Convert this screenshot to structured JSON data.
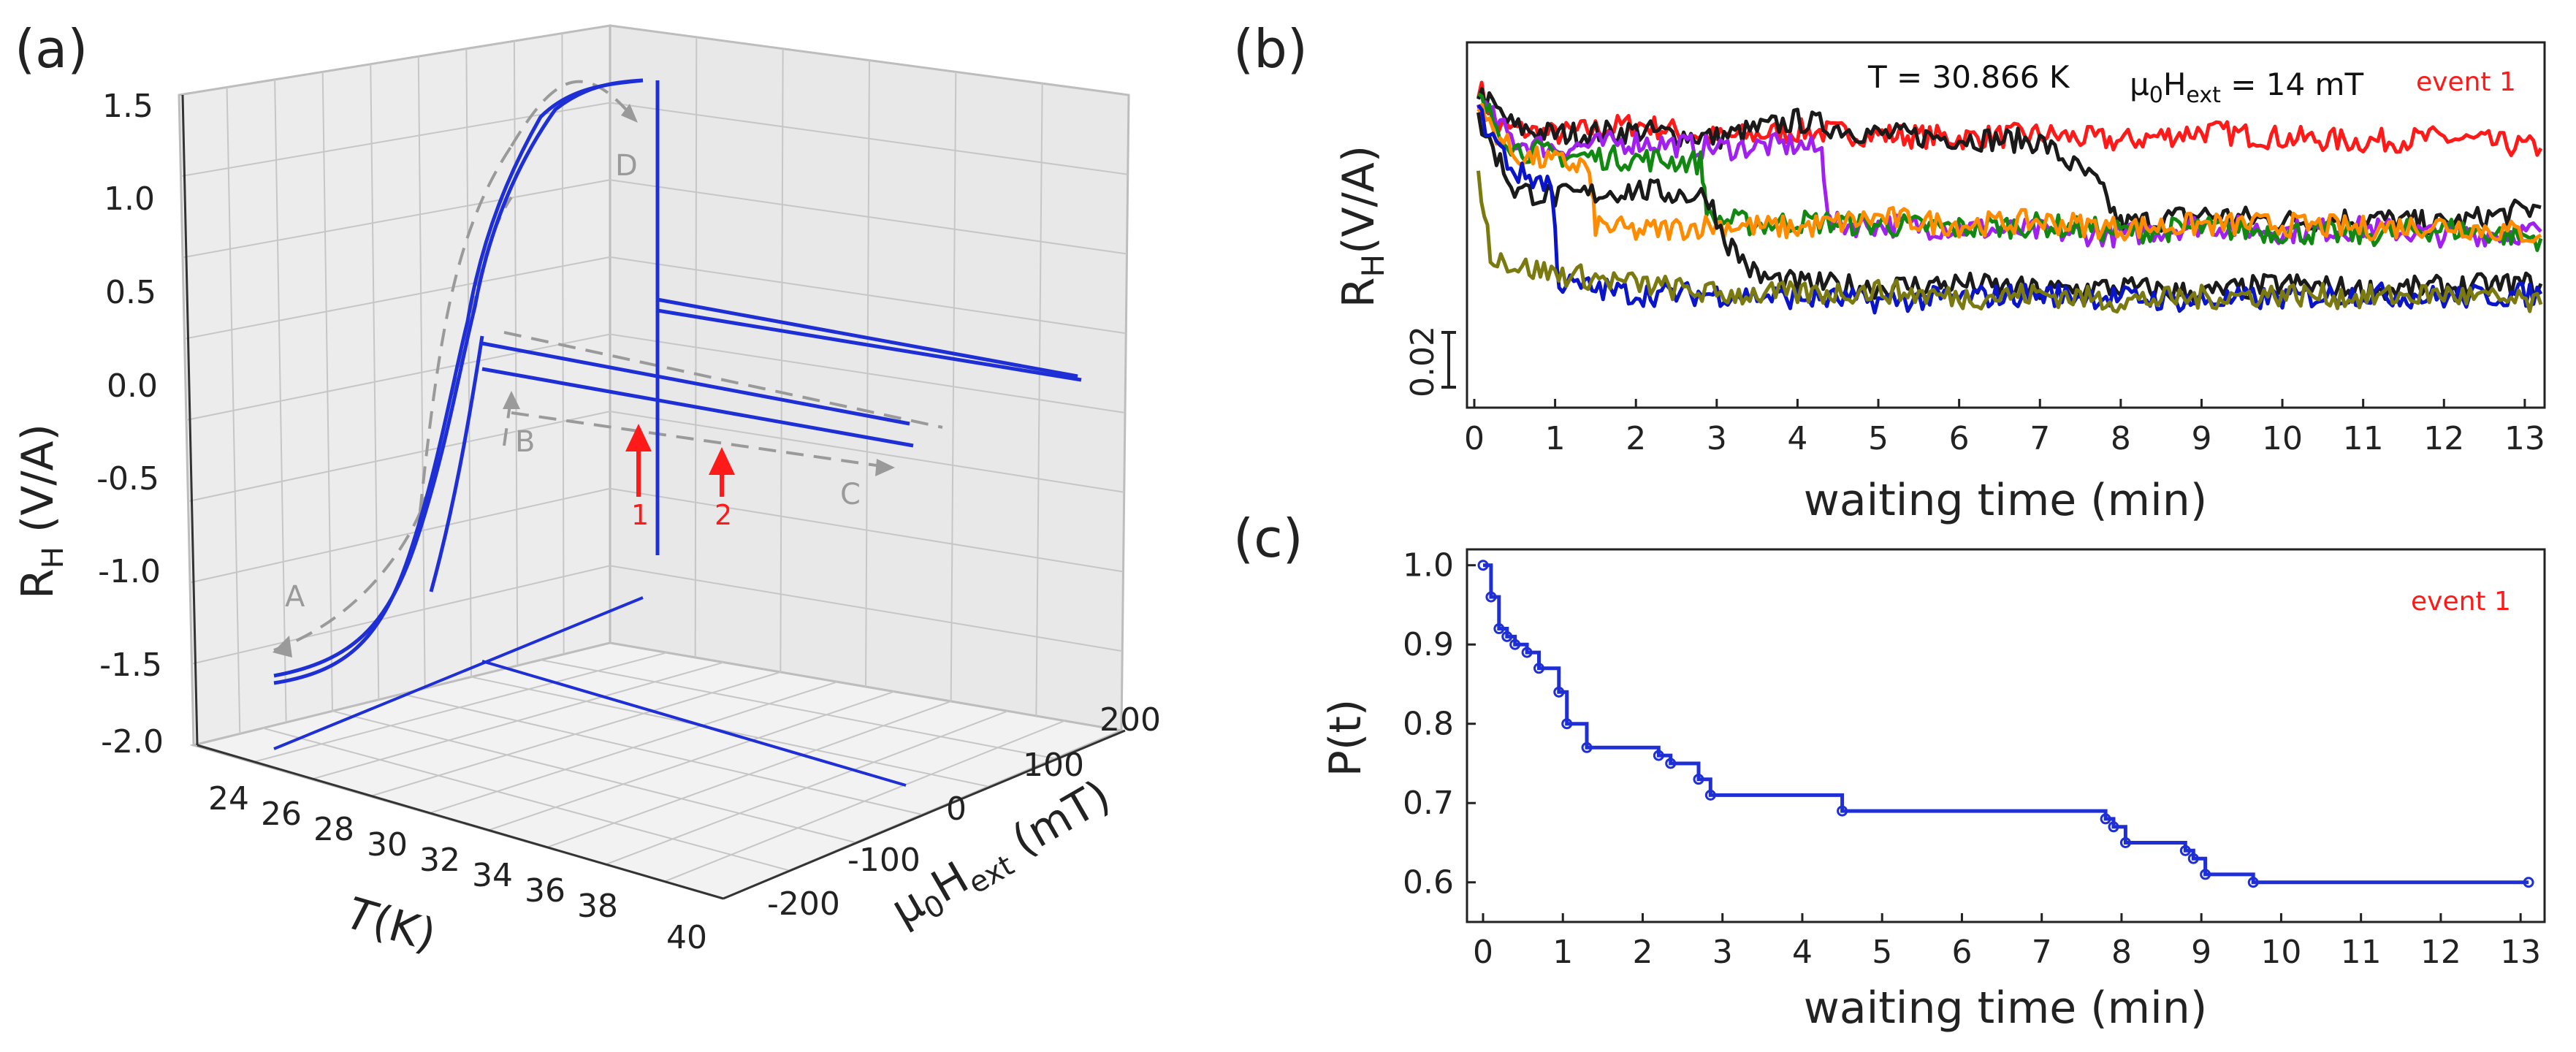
{
  "colors": {
    "blue": "#1f2fd6",
    "red": "#ff1a1a",
    "gray": "#8c8c8c",
    "black": "#1a1a1a",
    "orange": "#ff8c00",
    "green": "#118811",
    "purple": "#a020f0",
    "olive": "#7a7a10",
    "darkblue": "#0a14c8"
  },
  "panels": {
    "a": "(a)",
    "b": "(b)",
    "c": "(c)"
  },
  "chart_data": [
    {
      "id": "a",
      "type": "line",
      "projection": "3d",
      "axes": {
        "x": {
          "label_main": "T",
          "label_unit": "(K)",
          "ticks": [
            24,
            26,
            28,
            30,
            32,
            34,
            36,
            38,
            40
          ],
          "range": [
            24,
            40
          ]
        },
        "y": {
          "label_prefix": "μ",
          "label_sub": "0",
          "label_main": "H",
          "label_sub2": "ext",
          "label_unit": " (mT)",
          "ticks": [
            -200,
            -100,
            0,
            100,
            200
          ],
          "range": [
            -250,
            250
          ]
        },
        "z": {
          "label_main": "R",
          "label_sub": "H",
          "label_unit": " (V/A)",
          "ticks": [
            "1.5",
            "1.0",
            "0.5",
            "0.0",
            "-0.5",
            "-1.0",
            "-1.5",
            "-2.0"
          ],
          "range": [
            -2.0,
            1.5
          ]
        }
      },
      "path_labels": [
        "A",
        "B",
        "C",
        "D"
      ],
      "event_labels": [
        "1",
        "2"
      ]
    },
    {
      "id": "b",
      "type": "line",
      "xlabel": "waiting time (min)",
      "ylabel_main": "R",
      "ylabel_sub": "H",
      "ylabel_unit": "(V/A)",
      "xlim": [
        0,
        13.2
      ],
      "xticks": [
        0,
        1,
        2,
        3,
        4,
        5,
        6,
        7,
        8,
        9,
        10,
        11,
        12,
        13
      ],
      "scale_bar": "0.02",
      "annotations": {
        "temperature": "T = 30.866 K",
        "field_prefix": "μ",
        "field_sub": "0",
        "field_main": "H",
        "field_sub2": "ext",
        "field_value": " = 14 mT",
        "event": "event 1"
      },
      "series": [
        {
          "color": "red",
          "values": [
            [
              0.05,
              0.9
            ],
            [
              0.3,
              0.78
            ],
            [
              1,
              0.76
            ],
            [
              2,
              0.79
            ],
            [
              3,
              0.75
            ],
            [
              4,
              0.77
            ],
            [
              5,
              0.76
            ],
            [
              6,
              0.75
            ],
            [
              7,
              0.76
            ],
            [
              8,
              0.74
            ],
            [
              9,
              0.77
            ],
            [
              10,
              0.75
            ],
            [
              11,
              0.74
            ],
            [
              12,
              0.75
            ],
            [
              13.2,
              0.72
            ]
          ]
        },
        {
          "color": "black",
          "values": [
            [
              0.05,
              0.88
            ],
            [
              0.5,
              0.78
            ],
            [
              1,
              0.76
            ],
            [
              2,
              0.77
            ],
            [
              3,
              0.75
            ],
            [
              4,
              0.8
            ],
            [
              5,
              0.76
            ],
            [
              6,
              0.75
            ],
            [
              7,
              0.74
            ],
            [
              7.7,
              0.62
            ],
            [
              8,
              0.5
            ],
            [
              9,
              0.53
            ],
            [
              10,
              0.51
            ],
            [
              11,
              0.52
            ],
            [
              12,
              0.5
            ],
            [
              13.2,
              0.55
            ]
          ]
        },
        {
          "color": "purple",
          "values": [
            [
              0.05,
              0.85
            ],
            [
              0.5,
              0.74
            ],
            [
              1,
              0.72
            ],
            [
              2,
              0.74
            ],
            [
              3,
              0.72
            ],
            [
              4,
              0.73
            ],
            [
              4.3,
              0.71
            ],
            [
              4.4,
              0.5
            ],
            [
              5,
              0.5
            ],
            [
              6,
              0.49
            ],
            [
              7,
              0.48
            ],
            [
              8,
              0.47
            ],
            [
              9,
              0.5
            ],
            [
              10,
              0.48
            ],
            [
              11,
              0.49
            ],
            [
              12,
              0.47
            ],
            [
              13.2,
              0.48
            ]
          ]
        },
        {
          "color": "green",
          "values": [
            [
              0.05,
              0.86
            ],
            [
              0.5,
              0.72
            ],
            [
              1,
              0.7
            ],
            [
              2,
              0.69
            ],
            [
              2.8,
              0.68
            ],
            [
              2.9,
              0.52
            ],
            [
              3.5,
              0.5
            ],
            [
              4,
              0.51
            ],
            [
              5,
              0.5
            ],
            [
              6,
              0.49
            ],
            [
              7,
              0.5
            ],
            [
              8,
              0.48
            ],
            [
              9,
              0.49
            ],
            [
              10,
              0.48
            ],
            [
              11,
              0.47
            ],
            [
              12,
              0.49
            ],
            [
              13.2,
              0.46
            ]
          ]
        },
        {
          "color": "orange",
          "values": [
            [
              0.05,
              0.83
            ],
            [
              0.5,
              0.7
            ],
            [
              1,
              0.68
            ],
            [
              1.4,
              0.67
            ],
            [
              1.5,
              0.5
            ],
            [
              2,
              0.48
            ],
            [
              3,
              0.5
            ],
            [
              4,
              0.49
            ],
            [
              5,
              0.52
            ],
            [
              6,
              0.5
            ],
            [
              7,
              0.51
            ],
            [
              8,
              0.49
            ],
            [
              9,
              0.5
            ],
            [
              10,
              0.5
            ],
            [
              11,
              0.49
            ],
            [
              12,
              0.5
            ],
            [
              13.2,
              0.47
            ]
          ]
        },
        {
          "color": "black",
          "values": [
            [
              0.05,
              0.8
            ],
            [
              0.5,
              0.6
            ],
            [
              1,
              0.58
            ],
            [
              2,
              0.6
            ],
            [
              2.9,
              0.58
            ],
            [
              3.1,
              0.46
            ],
            [
              3.5,
              0.35
            ],
            [
              4,
              0.33
            ],
            [
              5,
              0.32
            ],
            [
              6,
              0.33
            ],
            [
              7,
              0.31
            ],
            [
              8,
              0.32
            ],
            [
              9,
              0.3
            ],
            [
              10,
              0.33
            ],
            [
              11,
              0.31
            ],
            [
              12,
              0.32
            ],
            [
              13.2,
              0.33
            ]
          ]
        },
        {
          "color": "darkblue",
          "values": [
            [
              0.05,
              0.82
            ],
            [
              0.5,
              0.65
            ],
            [
              0.95,
              0.62
            ],
            [
              1.05,
              0.33
            ],
            [
              2,
              0.3
            ],
            [
              3,
              0.3
            ],
            [
              4,
              0.29
            ],
            [
              5,
              0.28
            ],
            [
              6,
              0.29
            ],
            [
              7,
              0.3
            ],
            [
              8,
              0.29
            ],
            [
              9,
              0.28
            ],
            [
              10,
              0.29
            ],
            [
              11,
              0.3
            ],
            [
              12,
              0.29
            ],
            [
              13.2,
              0.3
            ]
          ]
        },
        {
          "color": "olive",
          "values": [
            [
              0.05,
              0.65
            ],
            [
              0.2,
              0.42
            ],
            [
              0.5,
              0.38
            ],
            [
              1,
              0.36
            ],
            [
              2,
              0.33
            ],
            [
              3,
              0.3
            ],
            [
              4,
              0.3
            ],
            [
              5,
              0.31
            ],
            [
              6,
              0.29
            ],
            [
              7,
              0.3
            ],
            [
              8,
              0.28
            ],
            [
              9,
              0.29
            ],
            [
              10,
              0.3
            ],
            [
              11,
              0.29
            ],
            [
              12,
              0.3
            ],
            [
              13.2,
              0.27
            ]
          ]
        }
      ]
    },
    {
      "id": "c",
      "type": "line",
      "step": true,
      "xlabel": "waiting time (min)",
      "ylabel": "P(t)",
      "xlim": [
        0,
        13.2
      ],
      "ylim": [
        0.55,
        1.02
      ],
      "xticks": [
        0,
        1,
        2,
        3,
        4,
        5,
        6,
        7,
        8,
        9,
        10,
        11,
        12,
        13
      ],
      "yticks": [
        "0.6",
        "0.7",
        "0.8",
        "0.9",
        "1.0"
      ],
      "event": "event 1",
      "series": [
        {
          "x": [
            0,
            0.1,
            0.2,
            0.3,
            0.4,
            0.55,
            0.7,
            0.95,
            1.05,
            1.3,
            2.2,
            2.35,
            2.7,
            2.85,
            4.5,
            7.8,
            7.9,
            8.05,
            8.8,
            8.9,
            9.05,
            9.65,
            13.1
          ],
          "y": [
            1.0,
            0.96,
            0.92,
            0.91,
            0.9,
            0.89,
            0.87,
            0.84,
            0.8,
            0.77,
            0.76,
            0.75,
            0.73,
            0.71,
            0.69,
            0.68,
            0.67,
            0.65,
            0.64,
            0.63,
            0.61,
            0.6,
            0.6
          ]
        }
      ]
    }
  ]
}
